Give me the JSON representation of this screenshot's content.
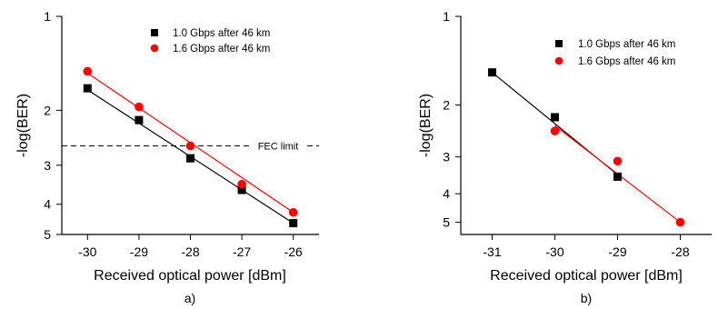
{
  "chart_data": [
    {
      "type": "scatter",
      "panel_label": "a)",
      "xlabel": "Received optical power [dBm]",
      "ylabel": "-log(BER)",
      "xlim": [
        -30.5,
        -25.5
      ],
      "ylim": [
        1,
        5
      ],
      "x_ticks": [
        -30,
        -29,
        -28,
        -27,
        -26
      ],
      "y_ticks": [
        1,
        2,
        3,
        4,
        5
      ],
      "y_scale": "log",
      "legend_position": "top-right",
      "series": [
        {
          "name": "1.0 Gbps after 46 km",
          "marker": "square",
          "color": "#000000",
          "x": [
            -30,
            -29,
            -28,
            -27,
            -26
          ],
          "y": [
            1.7,
            2.15,
            2.85,
            3.6,
            4.6
          ],
          "fit": [
            [
              -30,
              1.72
            ],
            [
              -26,
              4.6
            ]
          ]
        },
        {
          "name": "1.6 Gbps after 46 km",
          "marker": "circle",
          "color": "#ff0000",
          "x": [
            -30,
            -29,
            -28,
            -27,
            -26
          ],
          "y": [
            1.5,
            1.95,
            2.6,
            3.45,
            4.25
          ],
          "fit": [
            [
              -30,
              1.52
            ],
            [
              -26,
              4.25
            ]
          ]
        }
      ],
      "annotations": [
        {
          "text": "FEC limit",
          "y": 2.6
        }
      ]
    },
    {
      "type": "scatter",
      "panel_label": "b)",
      "xlabel": "Received optical power [dBm]",
      "ylabel": "-log(BER)",
      "xlim": [
        -31.5,
        -27.5
      ],
      "ylim": [
        1,
        5.5
      ],
      "x_ticks": [
        -31,
        -30,
        -29,
        -28
      ],
      "y_ticks": [
        1,
        2,
        3,
        4,
        5
      ],
      "y_scale": "log",
      "legend_position": "top-right",
      "series": [
        {
          "name": "1.0 Gbps after 46 km",
          "marker": "square",
          "color": "#000000",
          "x": [
            -31,
            -30,
            -29
          ],
          "y": [
            1.55,
            2.2,
            3.5
          ],
          "fit": [
            [
              -31,
              1.55
            ],
            [
              -29,
              3.45
            ]
          ]
        },
        {
          "name": "1.6 Gbps after 46 km",
          "marker": "circle",
          "color": "#ff0000",
          "x": [
            -30,
            -29,
            -28
          ],
          "y": [
            2.45,
            3.1,
            5.0
          ],
          "fit": [
            [
              -30,
              2.35
            ],
            [
              -28,
              5.0
            ]
          ]
        }
      ]
    }
  ]
}
